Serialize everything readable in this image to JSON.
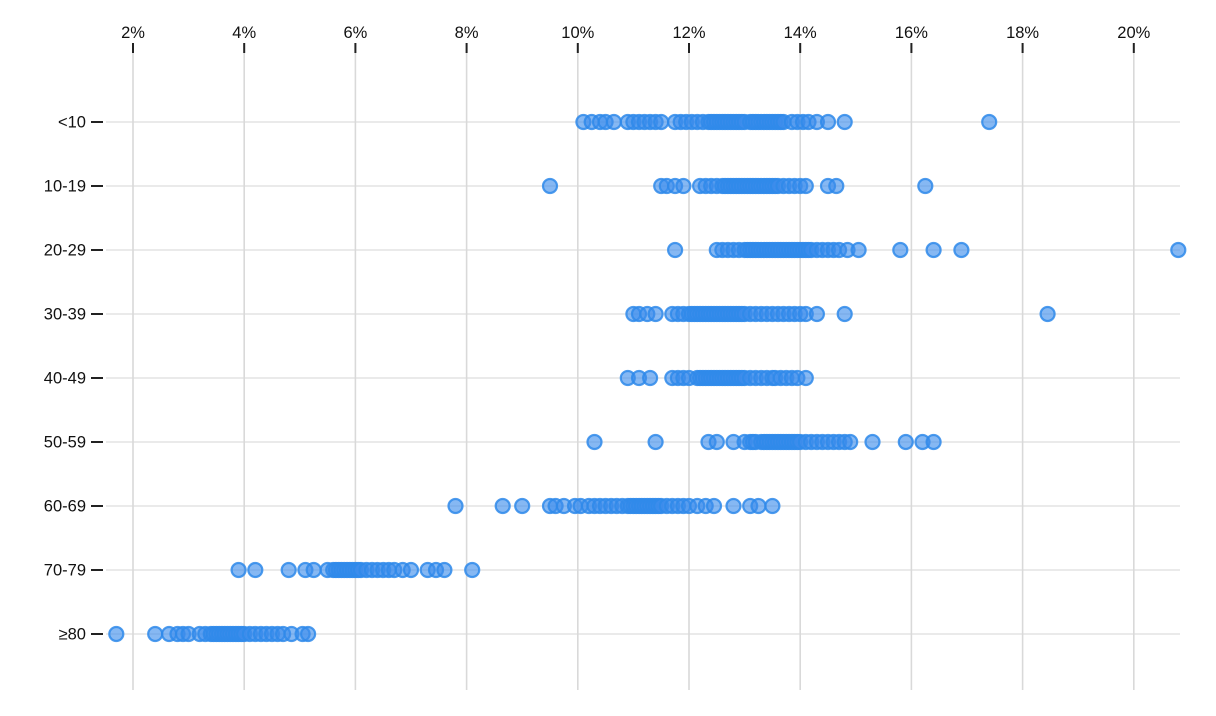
{
  "chart_data": {
    "type": "scatter",
    "variant": "horizontal-strip-plot",
    "title": "",
    "xlabel": "",
    "ylabel": "",
    "grid": "vertical-gridlines-on",
    "legend": "none",
    "x_axis": {
      "position": "top",
      "unit": "%",
      "xlim": [
        0.9,
        21.6
      ],
      "ticks": [
        {
          "value": 2,
          "label": "2%"
        },
        {
          "value": 4,
          "label": "4%"
        },
        {
          "value": 6,
          "label": "6%"
        },
        {
          "value": 8,
          "label": "8%"
        },
        {
          "value": 10,
          "label": "10%"
        },
        {
          "value": 12,
          "label": "12%"
        },
        {
          "value": 14,
          "label": "14%"
        },
        {
          "value": 16,
          "label": "16%"
        },
        {
          "value": 18,
          "label": "18%"
        },
        {
          "value": 20,
          "label": "20%"
        }
      ]
    },
    "y_axis": {
      "position": "left",
      "categories": [
        "<10",
        "10-19",
        "20-29",
        "30-39",
        "40-49",
        "50-59",
        "60-69",
        "70-79",
        "≥80"
      ]
    },
    "series": [
      {
        "name": "<10",
        "values": [
          10.1,
          10.25,
          10.4,
          10.5,
          10.65,
          10.9,
          11.0,
          11.1,
          11.2,
          11.3,
          11.4,
          11.5,
          11.75,
          11.85,
          11.95,
          12.05,
          12.15,
          12.25,
          12.35,
          12.4,
          12.45,
          12.5,
          12.55,
          12.6,
          12.65,
          12.7,
          12.75,
          12.8,
          12.85,
          12.9,
          12.95,
          13.0,
          13.1,
          13.15,
          13.2,
          13.25,
          13.3,
          13.35,
          13.4,
          13.45,
          13.5,
          13.55,
          13.6,
          13.65,
          13.7,
          13.85,
          13.95,
          14.05,
          14.15,
          14.3,
          14.5,
          14.8,
          17.4
        ]
      },
      {
        "name": "10-19",
        "values": [
          9.5,
          11.5,
          11.6,
          11.75,
          11.9,
          12.2,
          12.3,
          12.4,
          12.5,
          12.6,
          12.65,
          12.7,
          12.75,
          12.8,
          12.85,
          12.9,
          12.95,
          13.0,
          13.05,
          13.1,
          13.15,
          13.2,
          13.25,
          13.3,
          13.35,
          13.4,
          13.45,
          13.5,
          13.55,
          13.6,
          13.7,
          13.8,
          13.9,
          14.0,
          14.1,
          14.5,
          14.65,
          16.25
        ]
      },
      {
        "name": "20-29",
        "values": [
          11.75,
          12.5,
          12.6,
          12.7,
          12.8,
          12.9,
          13.0,
          13.05,
          13.1,
          13.15,
          13.2,
          13.25,
          13.3,
          13.35,
          13.4,
          13.45,
          13.5,
          13.55,
          13.6,
          13.65,
          13.7,
          13.75,
          13.8,
          13.85,
          13.9,
          13.95,
          14.0,
          14.05,
          14.1,
          14.15,
          14.2,
          14.3,
          14.4,
          14.5,
          14.6,
          14.7,
          14.85,
          15.05,
          15.8,
          16.4,
          16.9,
          20.8
        ]
      },
      {
        "name": "30-39",
        "values": [
          11.0,
          11.1,
          11.25,
          11.4,
          11.7,
          11.8,
          11.9,
          12.0,
          12.05,
          12.1,
          12.15,
          12.2,
          12.25,
          12.3,
          12.35,
          12.4,
          12.45,
          12.5,
          12.55,
          12.6,
          12.65,
          12.7,
          12.75,
          12.8,
          12.85,
          12.9,
          12.95,
          13.0,
          13.1,
          13.2,
          13.3,
          13.4,
          13.5,
          13.6,
          13.7,
          13.8,
          13.9,
          14.0,
          14.1,
          14.3,
          14.8,
          18.45
        ]
      },
      {
        "name": "40-49",
        "values": [
          10.9,
          11.1,
          11.3,
          11.7,
          11.8,
          11.9,
          12.0,
          12.15,
          12.2,
          12.25,
          12.3,
          12.35,
          12.4,
          12.45,
          12.5,
          12.55,
          12.6,
          12.65,
          12.7,
          12.75,
          12.8,
          12.85,
          12.9,
          12.95,
          13.0,
          13.1,
          13.2,
          13.3,
          13.4,
          13.5,
          13.55,
          13.65,
          13.75,
          13.85,
          13.95,
          14.1
        ]
      },
      {
        "name": "50-59",
        "values": [
          10.3,
          11.4,
          12.35,
          12.5,
          12.8,
          13.0,
          13.1,
          13.15,
          13.2,
          13.3,
          13.35,
          13.4,
          13.45,
          13.5,
          13.55,
          13.6,
          13.65,
          13.7,
          13.75,
          13.8,
          13.85,
          13.9,
          13.95,
          14.0,
          14.1,
          14.2,
          14.3,
          14.4,
          14.5,
          14.6,
          14.7,
          14.8,
          14.9,
          15.3,
          15.9,
          16.2,
          16.4
        ]
      },
      {
        "name": "60-69",
        "values": [
          7.8,
          8.65,
          9.0,
          9.5,
          9.6,
          9.75,
          9.95,
          10.05,
          10.2,
          10.3,
          10.4,
          10.5,
          10.6,
          10.7,
          10.8,
          10.9,
          10.95,
          11.0,
          11.05,
          11.1,
          11.15,
          11.2,
          11.25,
          11.3,
          11.35,
          11.4,
          11.45,
          11.5,
          11.6,
          11.7,
          11.8,
          11.9,
          12.0,
          12.15,
          12.3,
          12.45,
          12.8,
          13.1,
          13.25,
          13.5
        ]
      },
      {
        "name": "70-79",
        "values": [
          3.9,
          4.2,
          4.8,
          5.1,
          5.25,
          5.5,
          5.6,
          5.65,
          5.7,
          5.75,
          5.8,
          5.85,
          5.9,
          5.95,
          6.0,
          6.05,
          6.1,
          6.2,
          6.3,
          6.4,
          6.5,
          6.6,
          6.7,
          6.85,
          7.0,
          7.3,
          7.45,
          7.6,
          8.1
        ]
      },
      {
        "name": "≥80",
        "values": [
          1.7,
          2.4,
          2.65,
          2.8,
          2.9,
          3.0,
          3.2,
          3.3,
          3.4,
          3.45,
          3.5,
          3.55,
          3.6,
          3.65,
          3.7,
          3.75,
          3.8,
          3.85,
          3.9,
          3.95,
          4.0,
          4.1,
          4.2,
          4.3,
          4.4,
          4.5,
          4.6,
          4.7,
          4.85,
          5.05,
          5.15
        ]
      }
    ],
    "colors": {
      "dot_fill": "#3b8ceb",
      "dot_stroke": "#2f89ea",
      "gridline": "#d9d9d9",
      "row_line": "#e4e4e4",
      "tick_mark": "#222222",
      "label_text": "#111111",
      "background": "#ffffff"
    }
  }
}
